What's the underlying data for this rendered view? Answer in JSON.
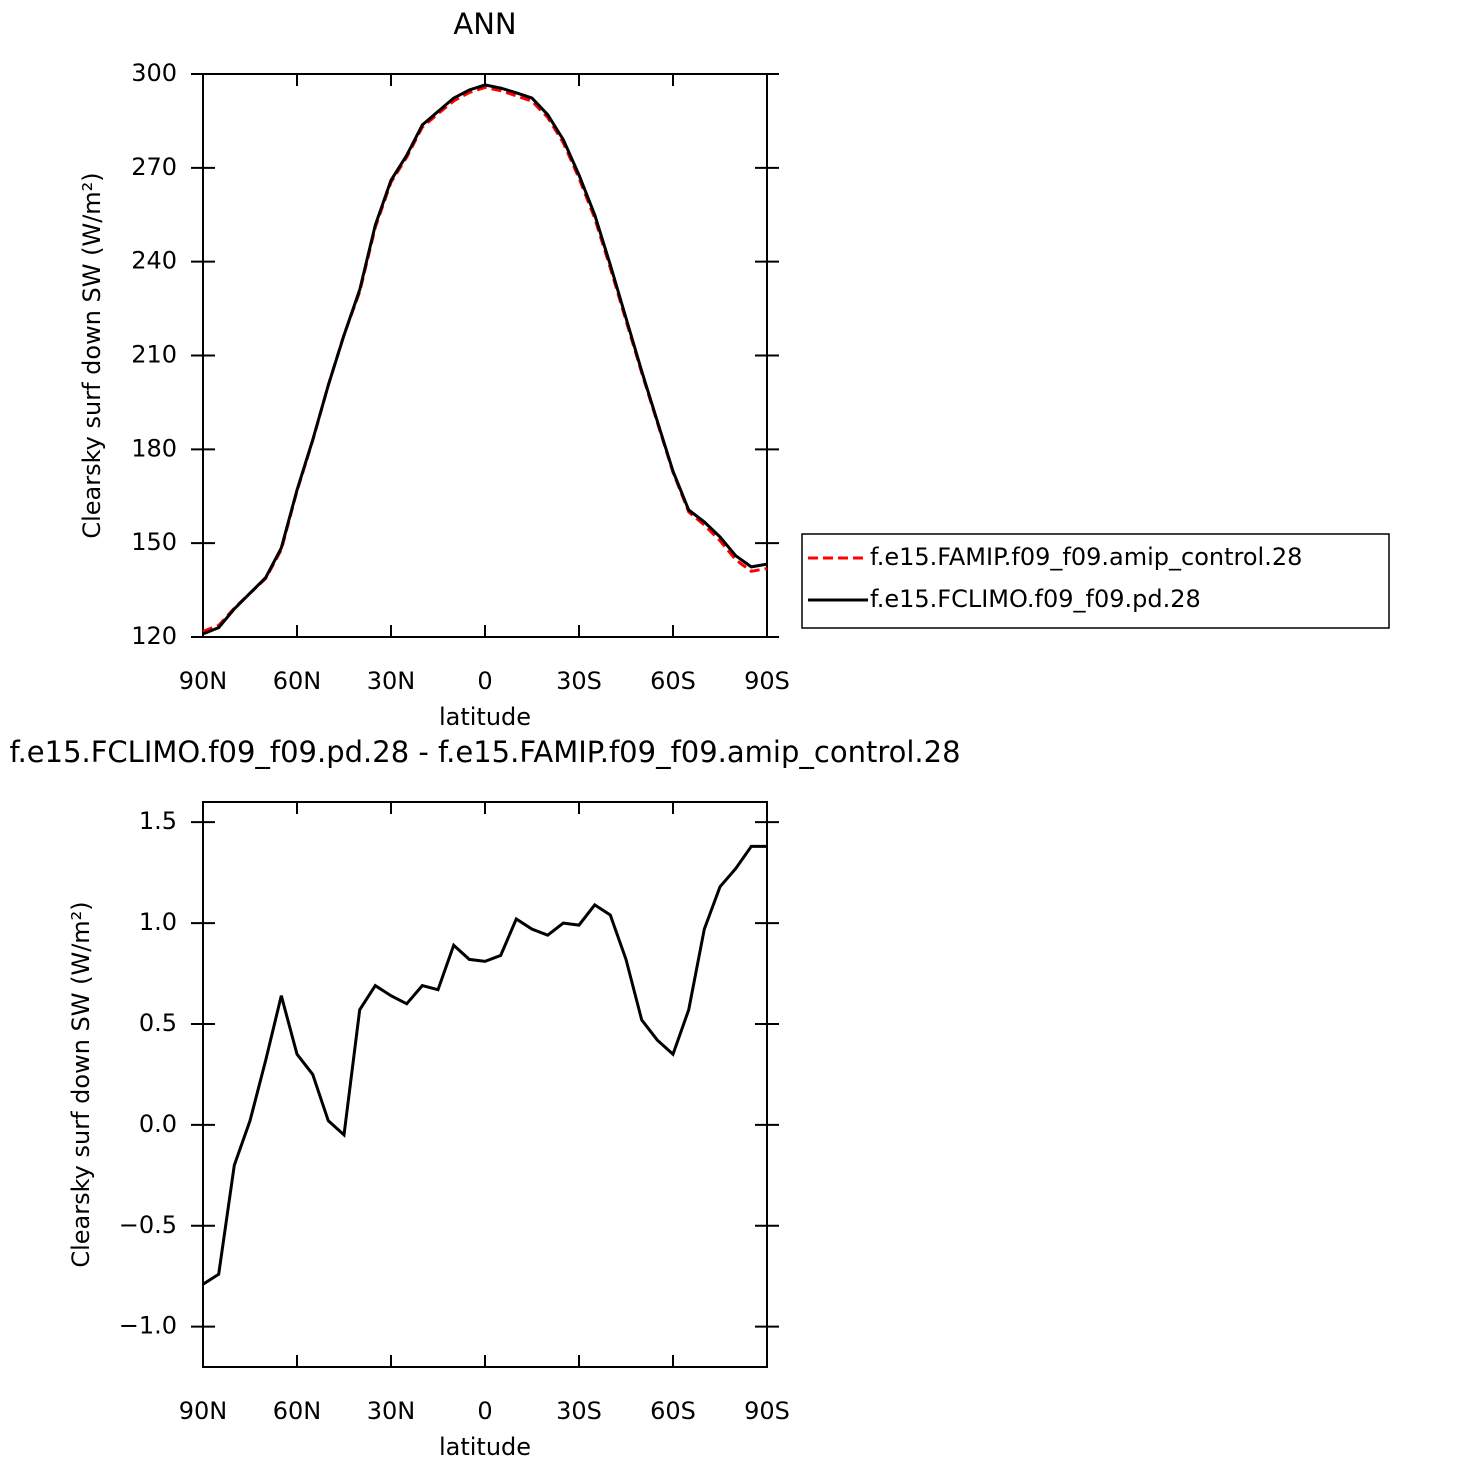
{
  "chart_data": [
    {
      "type": "line",
      "title": "ANN",
      "xlabel": "latitude",
      "ylabel": "Clearsky surf down SW (W/m²)",
      "x": [
        90,
        85,
        80,
        75,
        70,
        65,
        60,
        55,
        50,
        45,
        40,
        35,
        30,
        25,
        20,
        15,
        10,
        5,
        0,
        -5,
        -10,
        -15,
        -20,
        -25,
        -30,
        -35,
        -40,
        -45,
        -50,
        -55,
        -60,
        -65,
        -70,
        -75,
        -80,
        -85,
        -90
      ],
      "xlim": [
        90,
        -90
      ],
      "xticks": [
        {
          "value": 90,
          "label": "90N"
        },
        {
          "value": 60,
          "label": "60N"
        },
        {
          "value": 30,
          "label": "30N"
        },
        0,
        {
          "value": -30,
          "label": "30S"
        },
        {
          "value": -60,
          "label": "60S"
        },
        {
          "value": -90,
          "label": "90S"
        }
      ],
      "ylim": [
        120,
        300
      ],
      "yticks": [
        120,
        150,
        180,
        210,
        240,
        270,
        300
      ],
      "legend": "right",
      "series": [
        {
          "name": "f.e15.FAMIP.f09_f09.amip_control.28",
          "color": "#ff0000",
          "dashed": true,
          "values": [
            121.8,
            123.7,
            129.2,
            134.0,
            138.7,
            147.9,
            166.7,
            182.8,
            200.5,
            216.6,
            230.4,
            251.0,
            265.4,
            273.4,
            283.0,
            287.3,
            291.4,
            294.1,
            295.7,
            294.7,
            293.0,
            291.3,
            286.1,
            278.0,
            266.7,
            253.9,
            238.0,
            221.2,
            204.5,
            188.6,
            172.7,
            160.0,
            155.8,
            150.8,
            144.7,
            141.0,
            141.9
          ]
        },
        {
          "name": "f.e15.FCLIMO.f09_f09.pd.28",
          "color": "#000000",
          "dashed": false,
          "values": [
            121.0,
            123.0,
            129.0,
            134.0,
            139.0,
            148.5,
            167.0,
            183.0,
            200.5,
            216.5,
            231.0,
            251.7,
            266.0,
            274.0,
            283.7,
            288.0,
            292.3,
            294.9,
            296.5,
            295.5,
            294.0,
            292.3,
            287.0,
            279.0,
            267.7,
            255.0,
            239.0,
            222.0,
            205.0,
            189.0,
            173.0,
            160.6,
            156.8,
            152.0,
            146.0,
            142.4,
            143.3
          ]
        }
      ]
    },
    {
      "type": "line",
      "title": "f.e15.FCLIMO.f09_f09.pd.28 - f.e15.FAMIP.f09_f09.amip_control.28",
      "xlabel": "latitude",
      "ylabel": "Clearsky surf down SW (W/m²)",
      "x": [
        90,
        85,
        80,
        75,
        70,
        65,
        60,
        55,
        50,
        45,
        40,
        35,
        30,
        25,
        20,
        15,
        10,
        5,
        0,
        -5,
        -10,
        -15,
        -20,
        -25,
        -30,
        -35,
        -40,
        -45,
        -50,
        -55,
        -60,
        -65,
        -70,
        -75,
        -80,
        -85,
        -90
      ],
      "xlim": [
        90,
        -90
      ],
      "xticks": [
        {
          "value": 90,
          "label": "90N"
        },
        {
          "value": 60,
          "label": "60N"
        },
        {
          "value": 30,
          "label": "30N"
        },
        0,
        {
          "value": -30,
          "label": "30S"
        },
        {
          "value": -60,
          "label": "60S"
        },
        {
          "value": -90,
          "label": "90S"
        }
      ],
      "ylim": [
        -1.2,
        1.6
      ],
      "yticks": [
        {
          "value": -1.0,
          "label": "−1.0"
        },
        {
          "value": -0.5,
          "label": "−0.5"
        },
        {
          "value": 0,
          "label": "0.0"
        },
        {
          "value": 0.5,
          "label": "0.5"
        },
        {
          "value": 1.0,
          "label": "1.0"
        },
        {
          "value": 1.5,
          "label": "1.5"
        }
      ],
      "series": [
        {
          "color": "#000000",
          "dashed": false,
          "values": [
            -0.79,
            -0.74,
            -0.2,
            0.02,
            0.32,
            0.64,
            0.35,
            0.25,
            0.02,
            -0.05,
            0.57,
            0.69,
            0.64,
            0.6,
            0.69,
            0.67,
            0.89,
            0.82,
            0.81,
            0.84,
            1.02,
            0.97,
            0.94,
            1.0,
            0.99,
            1.09,
            1.04,
            0.82,
            0.52,
            0.42,
            0.35,
            0.57,
            0.97,
            1.18,
            1.27,
            1.38,
            1.38
          ]
        }
      ]
    }
  ]
}
